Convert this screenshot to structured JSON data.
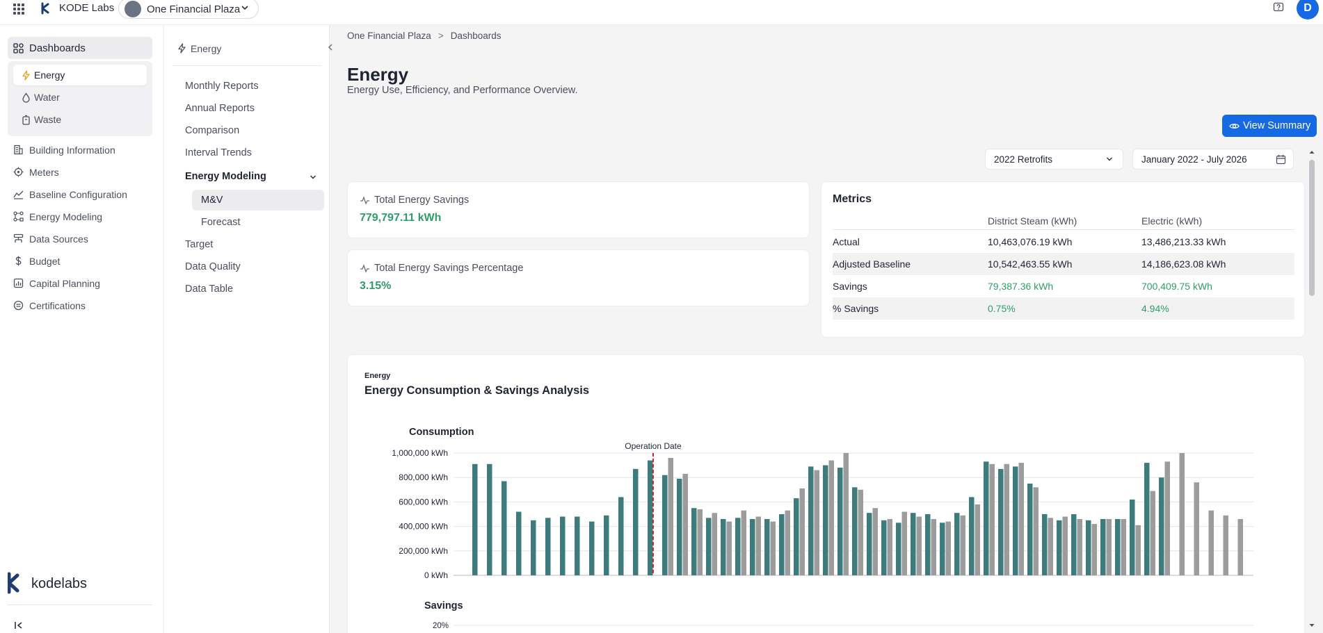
{
  "topbar": {
    "app_name": "KODE Labs",
    "site_name": "One Financial Plaza",
    "user_initial": "D"
  },
  "left_nav": {
    "dashboards": "Dashboards",
    "dashboards_sub": [
      {
        "label": "Energy",
        "icon": "bolt-icon",
        "active": true
      },
      {
        "label": "Water",
        "icon": "water-drop-icon",
        "active": false
      },
      {
        "label": "Waste",
        "icon": "trash-icon",
        "active": false
      }
    ],
    "items": [
      {
        "label": "Building Information",
        "icon": "building-icon"
      },
      {
        "label": "Meters",
        "icon": "meter-icon"
      },
      {
        "label": "Baseline Configuration",
        "icon": "baseline-icon"
      },
      {
        "label": "Energy Modeling",
        "icon": "modeling-icon"
      },
      {
        "label": "Data Sources",
        "icon": "data-sources-icon"
      },
      {
        "label": "Budget",
        "icon": "dollar-icon"
      },
      {
        "label": "Capital Planning",
        "icon": "capital-planning-icon"
      },
      {
        "label": "Certifications",
        "icon": "certifications-icon"
      }
    ]
  },
  "sec_nav": {
    "title": "Energy",
    "items": [
      "Monthly Reports",
      "Annual Reports",
      "Comparison",
      "Interval Trends"
    ],
    "group": "Energy Modeling",
    "group_items": [
      {
        "label": "M&V",
        "active": true
      },
      {
        "label": "Forecast",
        "active": false
      }
    ],
    "after_items": [
      "Target",
      "Data Quality",
      "Data Table"
    ]
  },
  "breadcrumb": [
    "One Financial Plaza",
    "Dashboards"
  ],
  "page": {
    "title": "Energy",
    "subtitle": "Energy Use, Efficiency, and Performance Overview.",
    "view_summary": "View Summary"
  },
  "filters": {
    "retrofit": "2022 Retrofits",
    "date_range": "January 2022 - July 2026"
  },
  "kpis": [
    {
      "label": "Total Energy Savings",
      "value": "779,797.11 kWh"
    },
    {
      "label": "Total Energy Savings Percentage",
      "value": "3.15%"
    }
  ],
  "metrics": {
    "title": "Metrics",
    "columns": [
      "District Steam (kWh)",
      "Electric (kWh)"
    ],
    "rows": [
      {
        "label": "Actual",
        "steam": "10,463,076.19 kWh",
        "electric": "13,486,213.33 kWh",
        "green": false
      },
      {
        "label": "Adjusted Baseline",
        "steam": "10,542,463.55 kWh",
        "electric": "14,186,623.08 kWh",
        "green": false
      },
      {
        "label": "Savings",
        "steam": "79,387.36 kWh",
        "electric": "700,409.75 kWh",
        "green": true
      },
      {
        "label": "% Savings",
        "steam": "0.75%",
        "electric": "4.94%",
        "green": true
      }
    ]
  },
  "chart": {
    "kicker": "Energy",
    "title": "Energy Consumption & Savings Analysis"
  },
  "chart_data": {
    "type": "bar",
    "title": "Consumption",
    "ylabel": "",
    "ylim": [
      0,
      1000000
    ],
    "yticks": [
      "0 kWh",
      "200,000 kWh",
      "400,000 kWh",
      "600,000 kWh",
      "800,000 kWh",
      "1,000,000 kWh"
    ],
    "annotation": "Operation Date",
    "operation_index": 12,
    "colors": {
      "actual": "#3e7b7c",
      "baseline": "#9c9c9c",
      "operation": "#d4252f"
    },
    "series": [
      {
        "values": [
          910000,
          910000,
          770000,
          520000,
          450000,
          470000,
          480000,
          480000,
          440000,
          490000,
          640000,
          870000,
          940000,
          820000,
          790000,
          550000,
          470000,
          460000,
          470000,
          460000,
          460000,
          500000,
          630000,
          890000,
          900000,
          880000,
          720000,
          510000,
          450000,
          430000,
          510000,
          500000,
          430000,
          510000,
          640000,
          930000,
          870000,
          890000,
          750000,
          500000,
          450000,
          500000,
          450000,
          460000,
          460000,
          620000,
          920000,
          800000
        ]
      },
      {
        "values": [
          null,
          null,
          null,
          null,
          null,
          null,
          null,
          null,
          null,
          null,
          null,
          null,
          null,
          960000,
          830000,
          540000,
          510000,
          440000,
          530000,
          480000,
          440000,
          530000,
          710000,
          860000,
          940000,
          1000000,
          700000,
          550000,
          460000,
          520000,
          480000,
          460000,
          440000,
          490000,
          580000,
          910000,
          910000,
          920000,
          720000,
          470000,
          480000,
          460000,
          420000,
          460000,
          460000,
          410000,
          690000,
          930000,
          1000000,
          760000,
          530000,
          490000,
          460000
        ]
      }
    ],
    "savings_title": "Savings",
    "savings_tick": "20%"
  }
}
